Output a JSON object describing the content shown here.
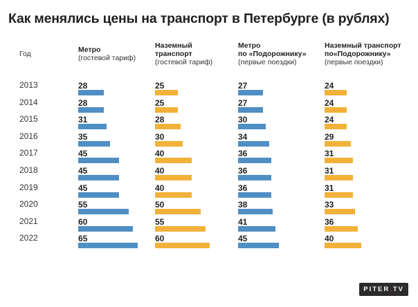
{
  "title": "Как менялись цены на транспорт в Петербурге (в рублях)",
  "year_header": "Год",
  "logo": {
    "text_a": "PITER",
    "dot": ".",
    "text_b": "TV"
  },
  "colors": {
    "blue": "#4f8fc4",
    "orange": "#f2b23a"
  },
  "chart_data": {
    "type": "bar",
    "title": "Как менялись цены на транспорт в Петербурге (в рублях)",
    "categories": [
      "2013",
      "2014",
      "2015",
      "2016",
      "2017",
      "2018",
      "2019",
      "2020",
      "2021",
      "2022"
    ],
    "series": [
      {
        "name": "Метро",
        "sub": "(гостевой тариф)",
        "color": "#4f8fc4",
        "values": [
          28,
          28,
          31,
          35,
          45,
          45,
          45,
          55,
          60,
          65
        ]
      },
      {
        "name": "Наземный транспорт",
        "sub": "(гостевой тариф)",
        "color": "#f2b23a",
        "values": [
          25,
          25,
          28,
          30,
          40,
          40,
          40,
          50,
          55,
          60
        ]
      },
      {
        "name": "Метро по «Подорожнику»",
        "sub": "(первые поездки)",
        "color": "#4f8fc4",
        "values": [
          27,
          27,
          30,
          34,
          36,
          36,
          36,
          38,
          41,
          45
        ]
      },
      {
        "name": "Наземный транспорт по«Подорожнику»",
        "sub": "(первые поездки)",
        "color": "#f2b23a",
        "values": [
          24,
          24,
          24,
          29,
          31,
          31,
          31,
          33,
          36,
          40
        ]
      }
    ]
  },
  "headers": [
    {
      "lines": [
        "Метро"
      ],
      "sub": "(гостевой тариф)"
    },
    {
      "lines": [
        "Наземный",
        "транспорт"
      ],
      "sub": "(гостевой тариф)"
    },
    {
      "lines": [
        "Метро",
        "по «Подорожнику»"
      ],
      "sub": "(первые поездки)"
    },
    {
      "lines": [
        "Наземный транспорт",
        "по«Подорожнику»"
      ],
      "sub": "(первые поездки)"
    }
  ]
}
